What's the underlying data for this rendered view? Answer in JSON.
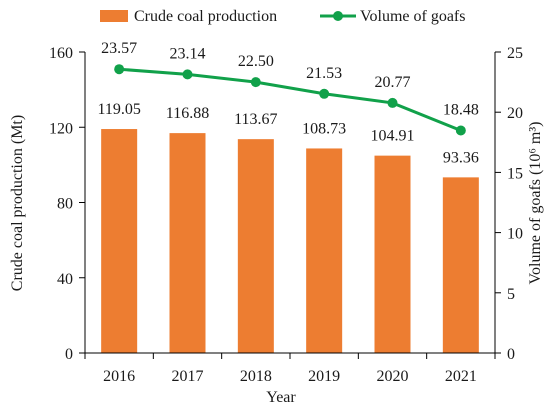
{
  "chart_data": {
    "type": "bar+line",
    "categories": [
      "2016",
      "2017",
      "2018",
      "2019",
      "2020",
      "2021"
    ],
    "xlabel": "Year",
    "series": [
      {
        "name": "Crude coal production",
        "type": "bar",
        "axis": "left",
        "values": [
          119.05,
          116.88,
          113.67,
          108.73,
          104.91,
          93.36
        ],
        "labels": [
          "119.05",
          "116.88",
          "113.67",
          "108.73",
          "104.91",
          "93.36"
        ],
        "color": "#ED7D31"
      },
      {
        "name": "Volume of goafs",
        "type": "line",
        "axis": "right",
        "values": [
          23.57,
          23.14,
          22.5,
          21.53,
          20.77,
          18.48
        ],
        "labels": [
          "23.57",
          "23.14",
          "22.50",
          "21.53",
          "20.77",
          "18.48"
        ],
        "color": "#11A14A"
      }
    ],
    "y_left": {
      "label": "Crude coal production (Mt)",
      "ylim": [
        0,
        160
      ],
      "ticks": [
        0,
        40,
        80,
        120,
        160
      ],
      "tick_labels": [
        "0",
        "40",
        "80",
        "120",
        "160"
      ]
    },
    "y_right": {
      "label": "Volume of goafs (10⁶ m³)",
      "ylim": [
        0,
        25
      ],
      "ticks": [
        0,
        5,
        10,
        15,
        20,
        25
      ],
      "tick_labels": [
        "0",
        "5",
        "10",
        "15",
        "20",
        "25"
      ]
    },
    "legend_position": "top",
    "grid": false
  }
}
